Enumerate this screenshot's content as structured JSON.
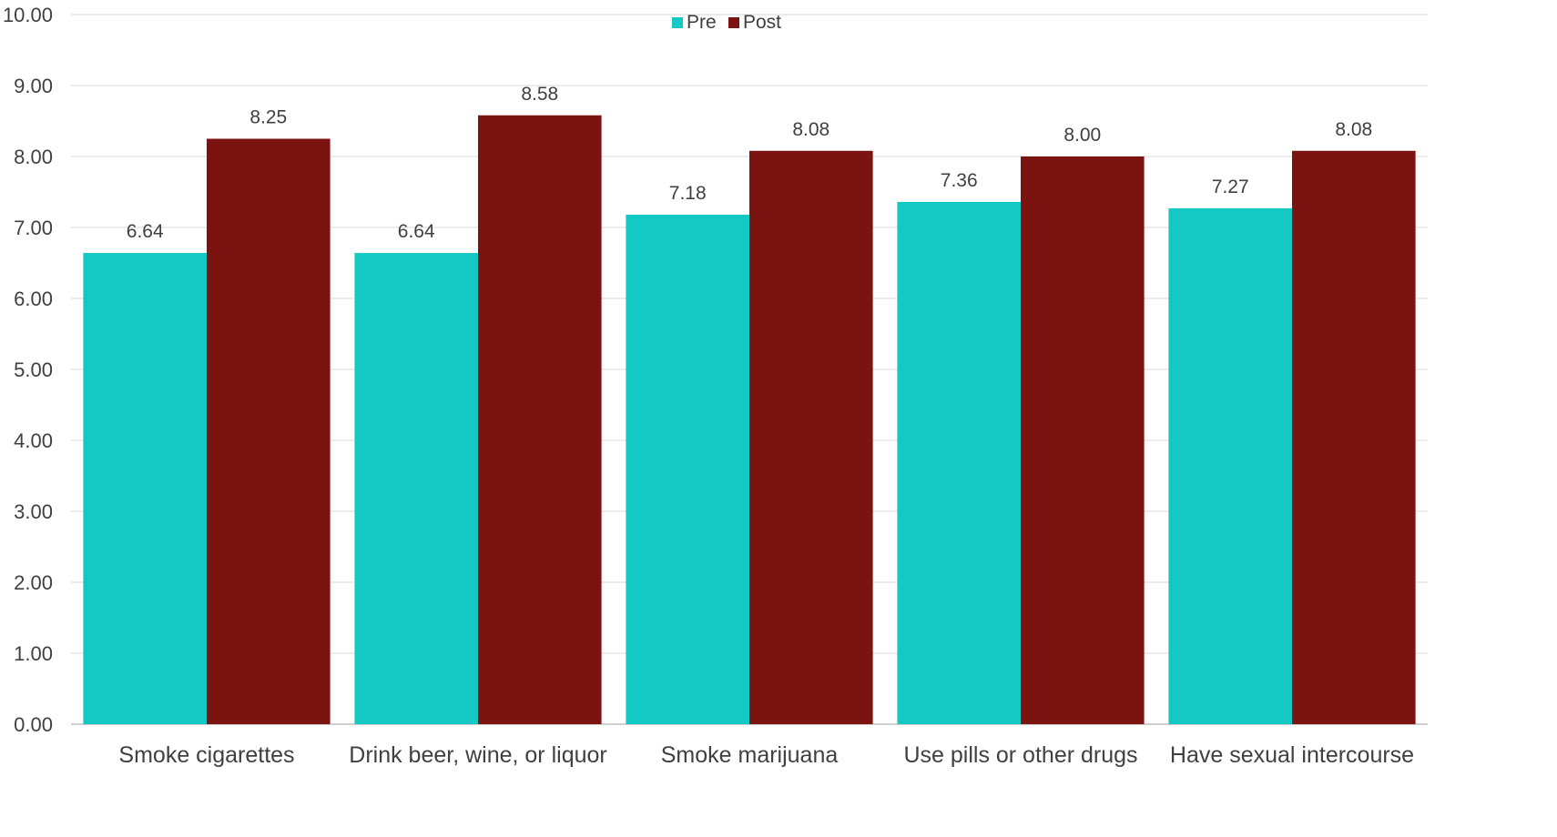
{
  "chart_data": {
    "type": "bar",
    "title": "",
    "xlabel": "",
    "ylabel": "",
    "ylim": [
      0,
      10
    ],
    "yticks": [
      "0.00",
      "1.00",
      "2.00",
      "3.00",
      "4.00",
      "5.00",
      "6.00",
      "7.00",
      "8.00",
      "9.00",
      "10.00"
    ],
    "grid": true,
    "legend_position": "top-center",
    "categories": [
      "Smoke cigarettes",
      "Drink beer, wine, or liquor",
      "Smoke marijuana",
      "Use pills or other drugs",
      "Have sexual intercourse"
    ],
    "series": [
      {
        "name": "Pre",
        "color": "#14C8C3",
        "values": [
          6.64,
          6.64,
          7.18,
          7.36,
          7.27
        ],
        "labels": [
          "6.64",
          "6.64",
          "7.18",
          "7.36",
          "7.27"
        ]
      },
      {
        "name": "Post",
        "color": "#7B1411",
        "values": [
          8.25,
          8.58,
          8.08,
          8.0,
          8.08
        ],
        "labels": [
          "8.25",
          "8.58",
          "8.08",
          "8.00",
          "8.08"
        ]
      }
    ]
  }
}
